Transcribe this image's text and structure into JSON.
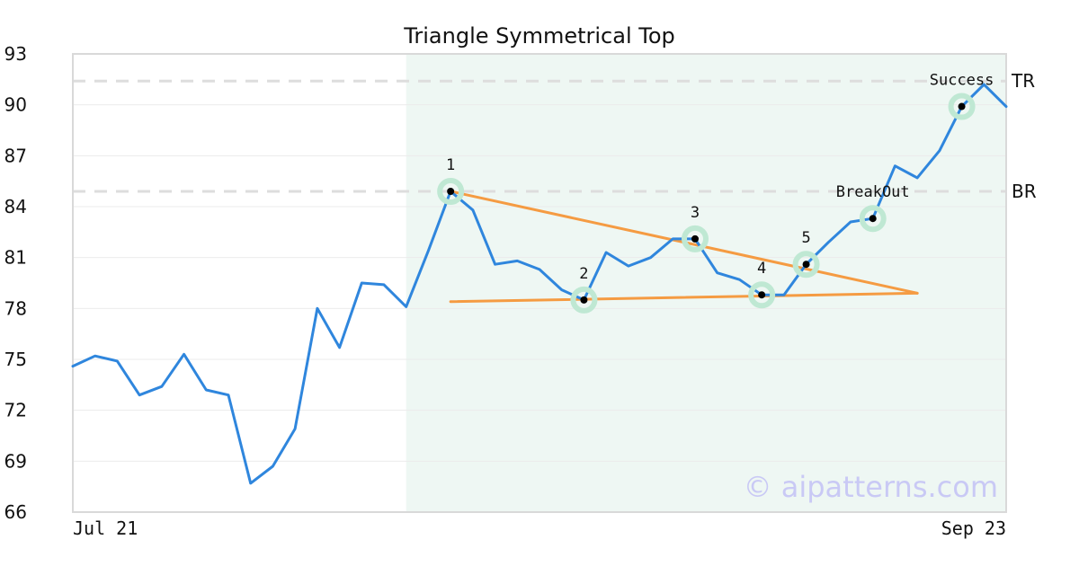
{
  "chart_data": {
    "type": "line",
    "title": "Triangle Symmetrical Top",
    "xlabel": "",
    "ylabel": "",
    "x_tick_labels": [
      "Jul 21",
      "Sep 23"
    ],
    "ylim": [
      66,
      93
    ],
    "yticks": [
      66,
      69,
      72,
      75,
      78,
      81,
      84,
      87,
      90,
      93
    ],
    "grid": true,
    "colors": {
      "price": "#2f86dd",
      "trendline": "#f59b42",
      "marker_halo": "#bfe8d3",
      "pattern_zone": "#eef7f3",
      "reference_line": "#dddddd",
      "watermark": "#c9c9f5"
    },
    "series": [
      {
        "values": [
          74.6,
          75.2,
          74.9,
          72.9,
          73.4,
          75.3,
          73.2,
          72.9,
          67.7,
          68.7,
          70.9,
          78.0,
          75.7,
          79.5,
          79.4,
          78.1,
          81.4,
          84.9,
          83.8,
          80.6,
          80.8,
          80.3,
          79.1,
          78.5,
          81.3,
          80.5,
          81.0,
          82.1,
          82.1,
          80.1,
          79.7,
          78.8,
          78.8,
          80.6,
          81.9,
          83.1,
          83.3,
          86.4,
          85.7,
          87.3,
          89.9,
          91.2,
          89.9
        ]
      }
    ],
    "pattern_zone": {
      "start_index": 15,
      "end_index": 42
    },
    "reference_lines": [
      {
        "label": "TR",
        "value": 91.4
      },
      {
        "label": "BR",
        "value": 84.9
      }
    ],
    "trendlines": [
      {
        "from": {
          "x": 17,
          "y": 84.9
        },
        "to": {
          "x": 38,
          "y": 78.9
        }
      },
      {
        "from": {
          "x": 17,
          "y": 78.4
        },
        "to": {
          "x": 38,
          "y": 78.9
        }
      }
    ],
    "points": [
      {
        "label": "1",
        "x": 17,
        "y": 84.9
      },
      {
        "label": "2",
        "x": 23,
        "y": 78.5
      },
      {
        "label": "3",
        "x": 28,
        "y": 82.1
      },
      {
        "label": "4",
        "x": 31,
        "y": 78.8
      },
      {
        "label": "5",
        "x": 33,
        "y": 80.6
      },
      {
        "label": "BreakOut",
        "x": 36,
        "y": 83.3
      },
      {
        "label": "Success",
        "x": 40,
        "y": 89.9
      }
    ],
    "watermark": "© aipatterns.com"
  }
}
